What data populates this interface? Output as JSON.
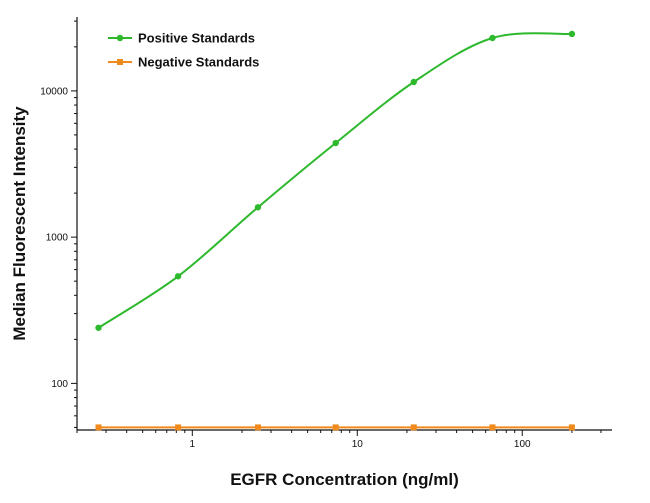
{
  "chart_data": {
    "type": "line",
    "title": "",
    "xlabel": "EGFR Concentration (ng/ml)",
    "ylabel": "Median Fluorescent Intensity",
    "x_scale": "log",
    "y_scale": "log",
    "xlim": [
      0.2,
      350
    ],
    "ylim": [
      48,
      32000
    ],
    "x_ticks": [
      {
        "value": 1,
        "label": "1"
      },
      {
        "value": 10,
        "label": "10"
      },
      {
        "value": 100,
        "label": "100"
      }
    ],
    "y_ticks": [
      {
        "value": 100,
        "label": "100"
      },
      {
        "value": 1000,
        "label": "1000"
      },
      {
        "value": 10000,
        "label": "10000"
      }
    ],
    "grid": false,
    "legend_position": "top-left",
    "series": [
      {
        "name": "Positive Standards",
        "color": "#2db82d",
        "marker": "circle",
        "points": [
          {
            "x": 0.27,
            "y": 240
          },
          {
            "x": 0.82,
            "y": 540
          },
          {
            "x": 2.5,
            "y": 1600
          },
          {
            "x": 7.4,
            "y": 4400
          },
          {
            "x": 22,
            "y": 11500
          },
          {
            "x": 66,
            "y": 23000
          },
          {
            "x": 200,
            "y": 24500
          }
        ]
      },
      {
        "name": "Negative Standards",
        "color": "#f08a1c",
        "marker": "square",
        "points": [
          {
            "x": 0.27,
            "y": 50
          },
          {
            "x": 0.82,
            "y": 50
          },
          {
            "x": 2.5,
            "y": 50
          },
          {
            "x": 7.4,
            "y": 50
          },
          {
            "x": 22,
            "y": 50
          },
          {
            "x": 66,
            "y": 50
          },
          {
            "x": 200,
            "y": 50
          }
        ]
      }
    ]
  }
}
